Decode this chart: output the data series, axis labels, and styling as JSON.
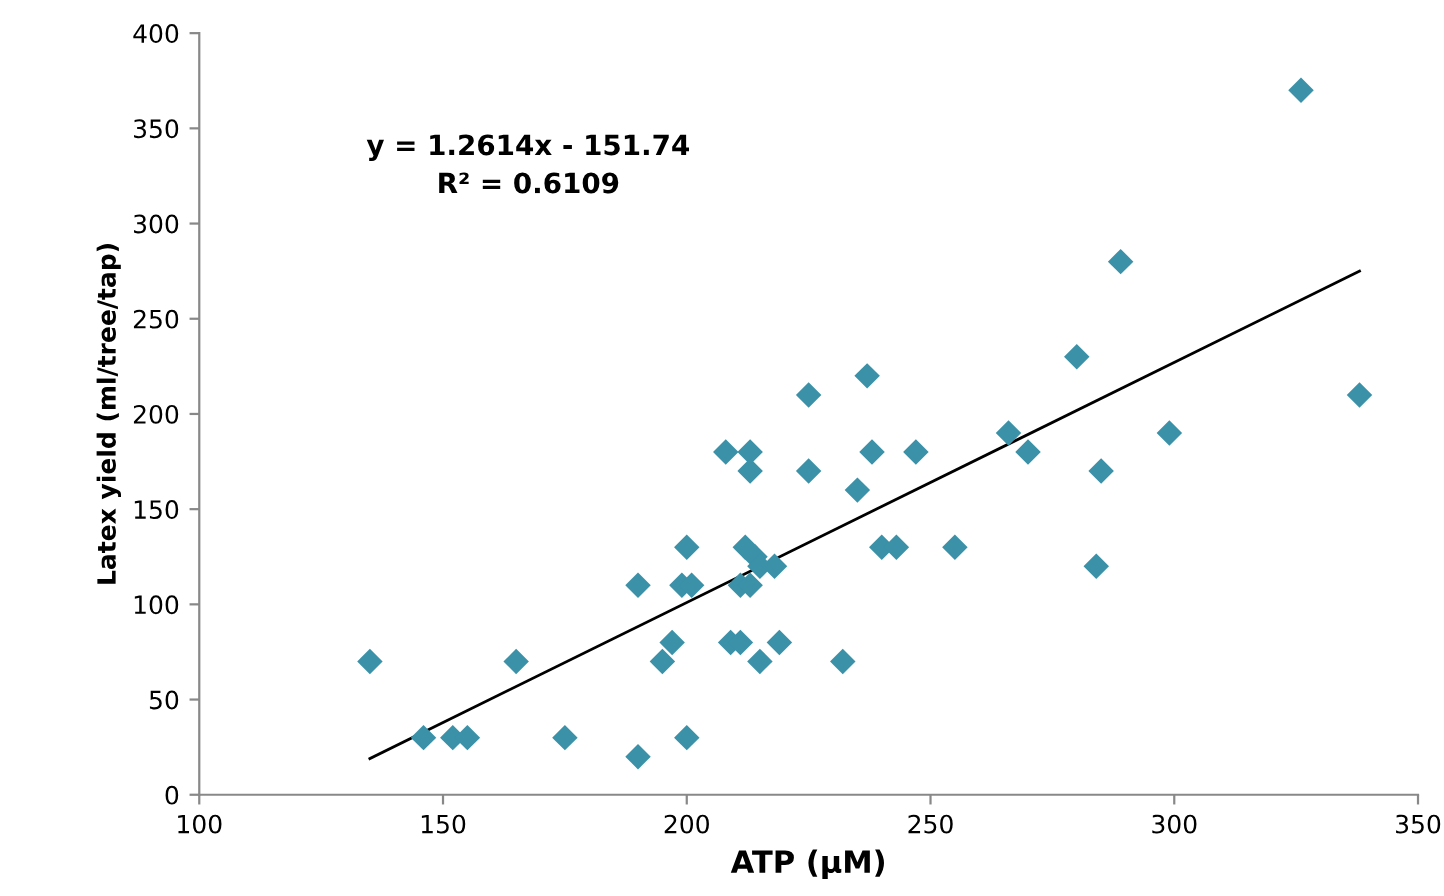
{
  "chart_data": {
    "type": "scatter",
    "xlabel": "ATP (µM)",
    "ylabel": "Latex yield (ml/tree/tap)",
    "annotations": [
      "y = 1.2614x - 151.74",
      "R² = 0.6109"
    ],
    "xlim": [
      100,
      350
    ],
    "xticks": [
      100,
      150,
      200,
      250,
      300,
      350
    ],
    "ylim": [
      0,
      400
    ],
    "yticks": [
      0,
      50,
      100,
      150,
      200,
      250,
      300,
      350,
      400
    ],
    "grid": false,
    "marker": "diamond",
    "series": [
      {
        "color": "#3a91a8",
        "x": [
          135,
          146,
          152,
          155,
          165,
          175,
          190,
          190,
          195,
          197,
          199,
          201,
          200,
          200,
          208,
          209,
          211,
          211,
          212,
          213,
          213,
          213,
          214,
          215,
          215,
          218,
          219,
          225,
          225,
          232,
          235,
          237,
          238,
          240,
          243,
          247,
          255,
          266,
          270,
          280,
          284,
          285,
          289,
          299,
          326,
          338
        ],
        "values": [
          70,
          30,
          30,
          30,
          70,
          30,
          110,
          20,
          70,
          80,
          110,
          110,
          130,
          30,
          180,
          80,
          80,
          110,
          130,
          110,
          180,
          170,
          125,
          120,
          70,
          120,
          80,
          210,
          170,
          70,
          160,
          220,
          180,
          130,
          130,
          180,
          130,
          190,
          180,
          230,
          120,
          170,
          280,
          190,
          370,
          210
        ]
      },
      {
        "type": "line",
        "color": "#000000",
        "line_style": "solid",
        "marker": "none",
        "x": [
          135,
          338
        ],
        "values": [
          19,
          275
        ]
      }
    ]
  }
}
